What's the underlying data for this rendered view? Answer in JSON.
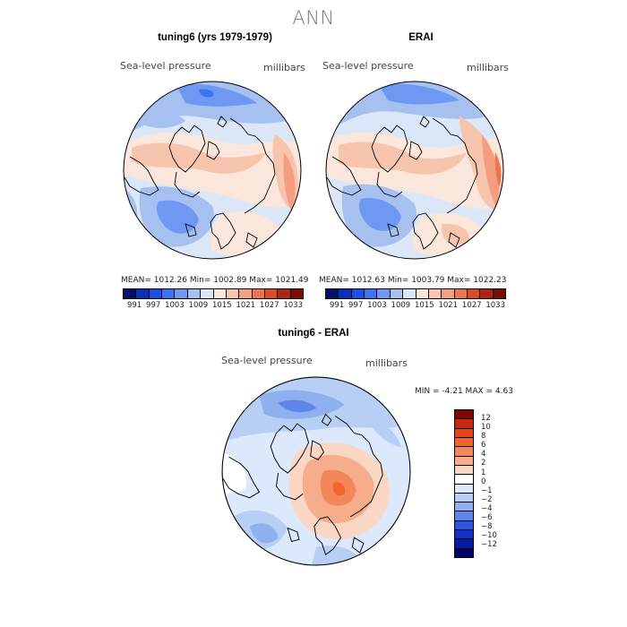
{
  "page": {
    "title": "ANN"
  },
  "panels": [
    {
      "title": "tuning6 (yrs 1979-1979)",
      "variable": "Sea-level pressure",
      "units": "millibars",
      "stats": "MEAN=  1012.26   Min=  1002.89   Max=  1021.49"
    },
    {
      "title": "ERAI",
      "variable": "Sea-level pressure",
      "units": "millibars",
      "stats": "MEAN=  1012.63   Min=  1003.79   Max=  1022.23"
    },
    {
      "title": "tuning6 - ERAI",
      "variable": "Sea-level pressure",
      "units": "millibars",
      "stats": "MIN =   -4.21  MAX =    4.63"
    }
  ],
  "colorbar_top": {
    "colors": [
      "#00106b",
      "#0a2fb8",
      "#1850e8",
      "#3a74f5",
      "#6f98f2",
      "#a6c0f0",
      "#dbe7f8",
      "#fbe6dc",
      "#f7c4ad",
      "#f29e7f",
      "#ec7650",
      "#db4c26",
      "#b02512",
      "#7d0a04"
    ],
    "ticks": [
      "991",
      "997",
      "1003",
      "1009",
      "1015",
      "1021",
      "1027",
      "1033"
    ]
  },
  "colorbar_diff": {
    "colors": [
      "#7d0a04",
      "#c32a0e",
      "#e6451c",
      "#f1652f",
      "#f3865a",
      "#f5ad8c",
      "#fad7c4",
      "#ffffff",
      "#dce8fb",
      "#b8cff5",
      "#8fb0ef",
      "#5e85ea",
      "#2e55e0",
      "#1530c8",
      "#0a1aa0",
      "#02006a"
    ],
    "ticks": [
      "12",
      "10",
      "8",
      "6",
      "4",
      "2",
      "1",
      "0",
      "−1",
      "−2",
      "−4",
      "−6",
      "−8",
      "−10",
      "−12"
    ]
  }
}
